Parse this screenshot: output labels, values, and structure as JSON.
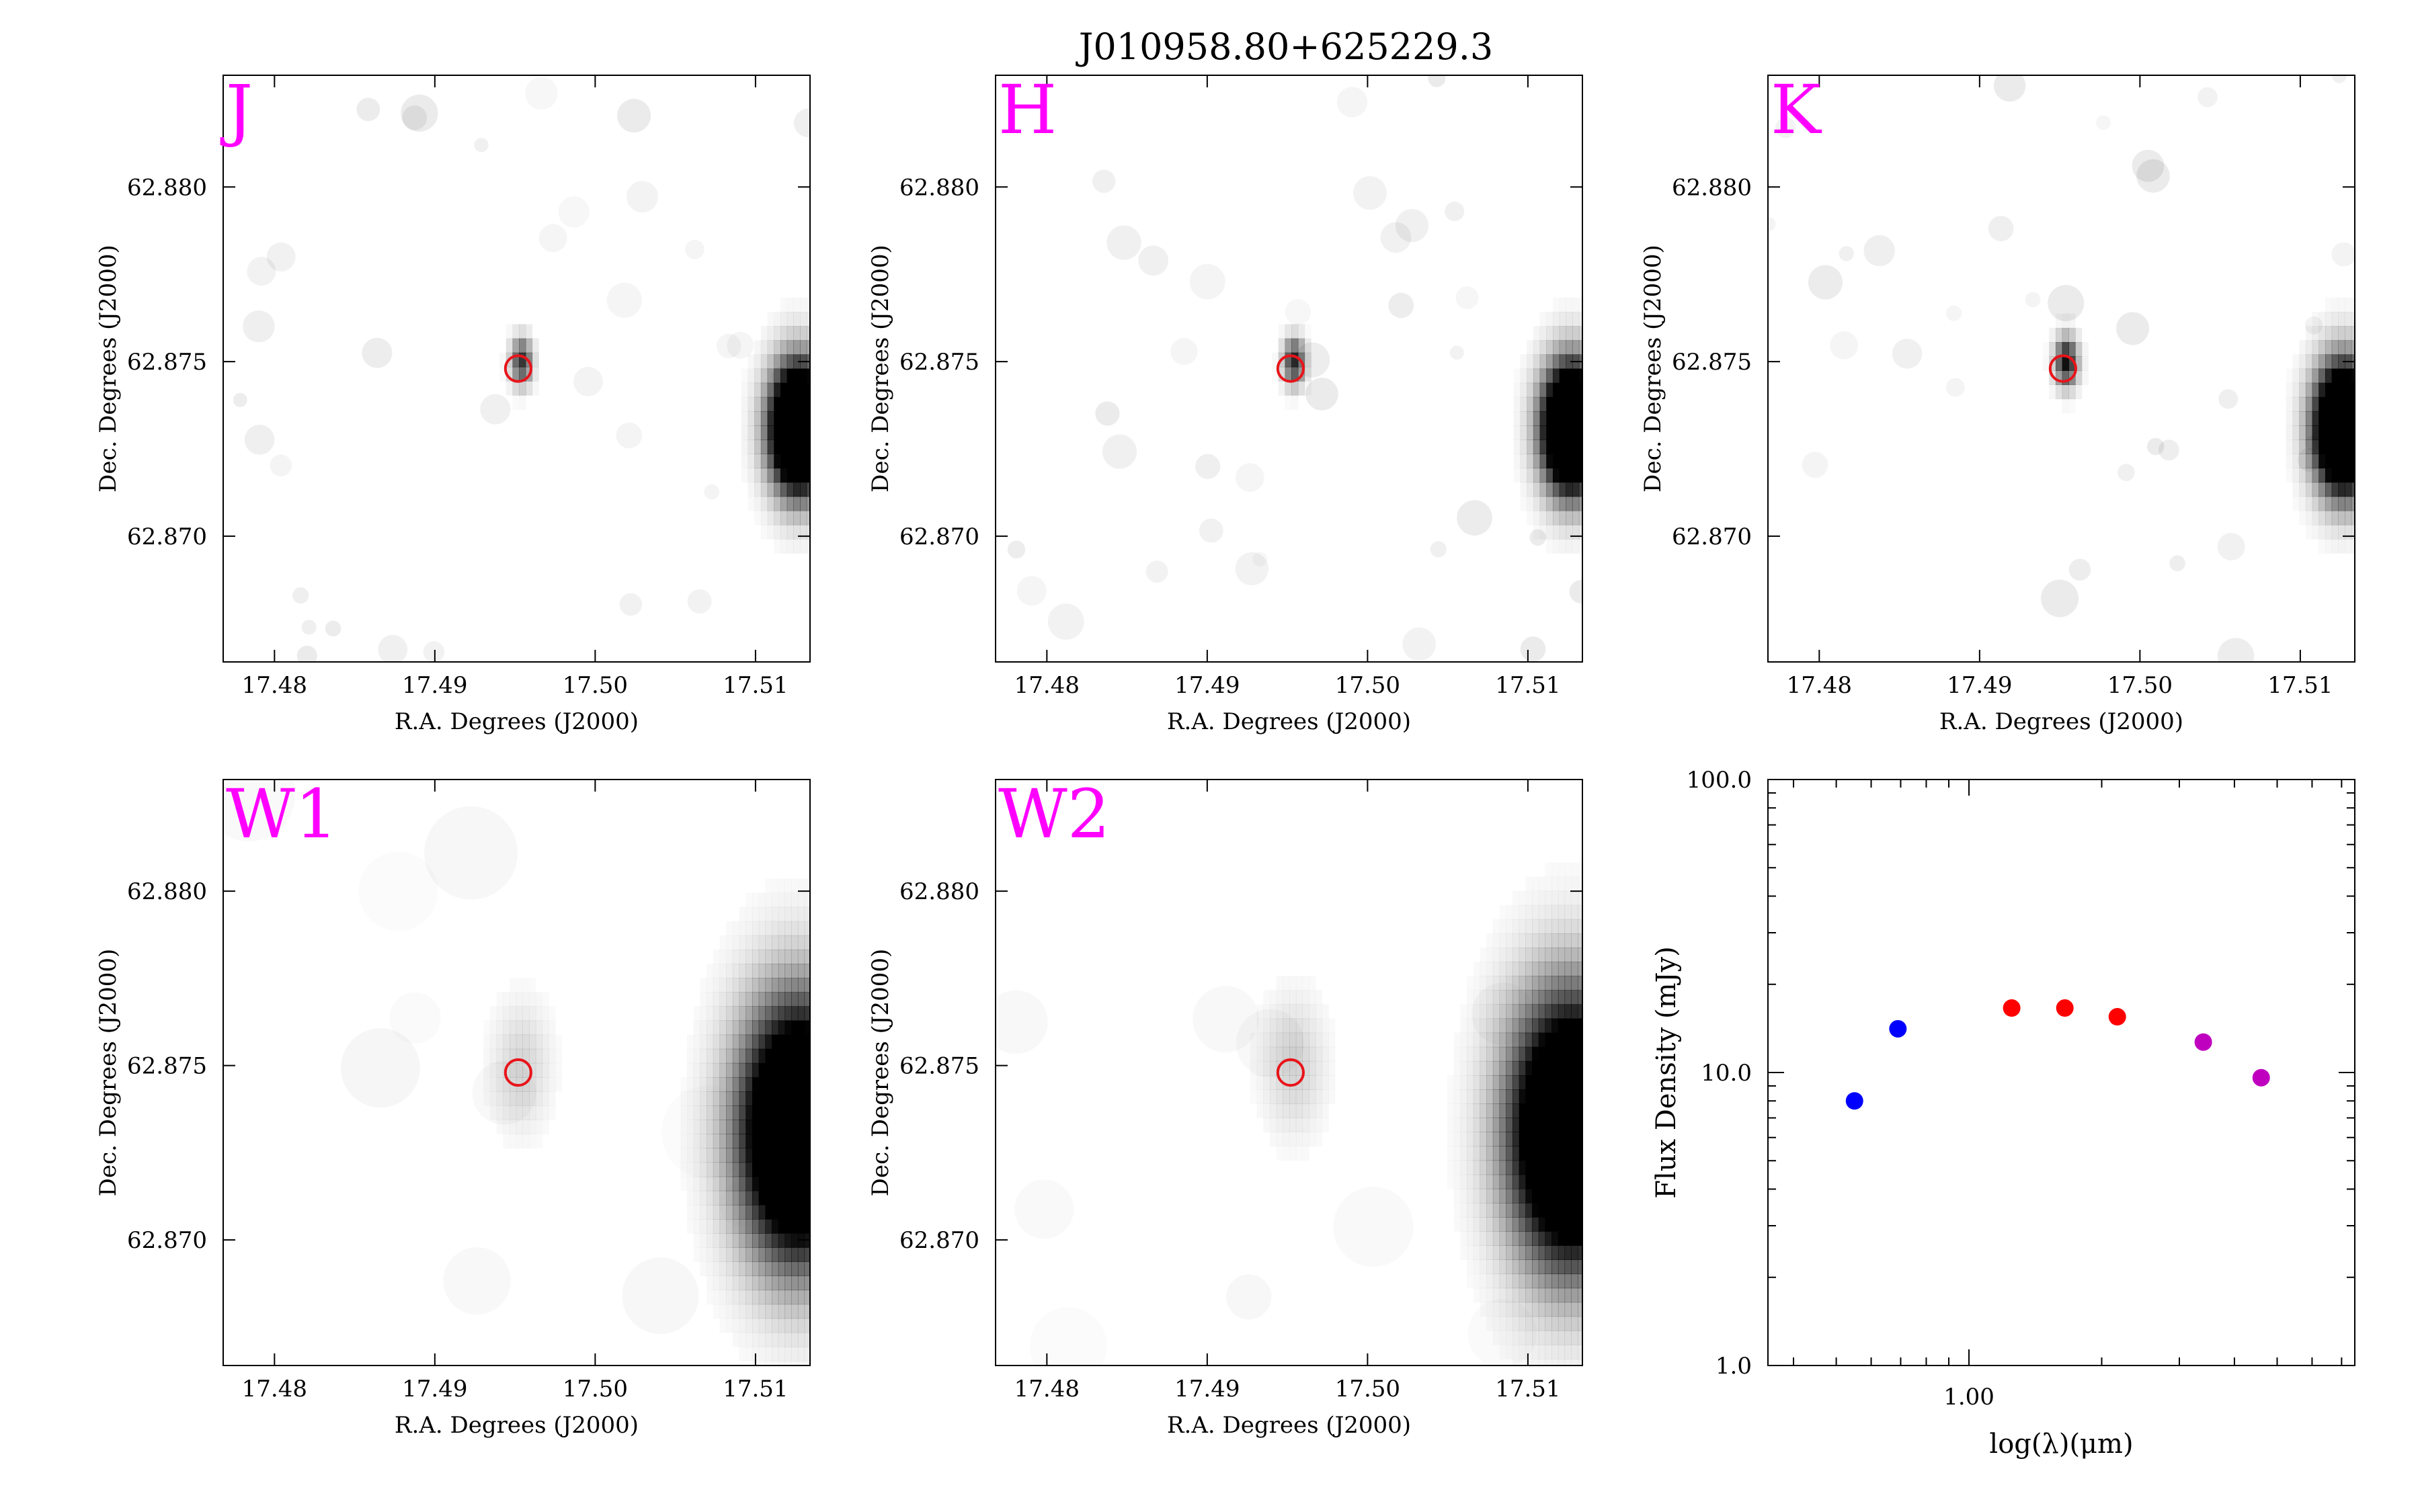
{
  "figure_title": "J010958.80+625229.3",
  "colors": {
    "band_label": "#ff00ff",
    "aperture": "#e8141a",
    "jhk_points": "#ff0000",
    "optical_points": "#0000ff",
    "wise_points": "#bf00bf"
  },
  "chart_data": [
    {
      "type": "heatmap",
      "band": "J",
      "xlabel": "R.A. Degrees (J2000)",
      "ylabel": "Dec. Degrees (J2000)",
      "xlim": [
        17.4768,
        17.5134
      ],
      "ylim": [
        62.8664,
        62.8832
      ],
      "xticks": [
        17.48,
        17.49,
        17.5,
        17.51
      ],
      "xtick_labels": [
        "17.48",
        "17.49",
        "17.50",
        "17.51"
      ],
      "yticks": [
        62.87,
        62.875,
        62.88
      ],
      "ytick_labels": [
        "62.870",
        "62.875",
        "62.880"
      ],
      "aperture": {
        "ra": 17.4952,
        "dec": 62.8748,
        "radius_deg": 0.0008
      },
      "sources": [
        {
          "ra": 17.4952,
          "dec": 62.8748,
          "sigma_deg": 0.00045,
          "amp": 0.8
        },
        {
          "ra": 17.5125,
          "dec": 62.8729,
          "sigma_deg": 0.0012,
          "amp": 2.5
        }
      ]
    },
    {
      "type": "heatmap",
      "band": "H",
      "xlabel": "R.A. Degrees (J2000)",
      "ylabel": "Dec. Degrees (J2000)",
      "xlim": [
        17.4768,
        17.5134
      ],
      "ylim": [
        62.8664,
        62.8832
      ],
      "xticks": [
        17.48,
        17.49,
        17.5,
        17.51
      ],
      "xtick_labels": [
        "17.48",
        "17.49",
        "17.50",
        "17.51"
      ],
      "yticks": [
        62.87,
        62.875,
        62.88
      ],
      "ytick_labels": [
        "62.870",
        "62.875",
        "62.880"
      ],
      "aperture": {
        "ra": 17.4952,
        "dec": 62.8748,
        "radius_deg": 0.0008
      },
      "sources": [
        {
          "ra": 17.4952,
          "dec": 62.8748,
          "sigma_deg": 0.00045,
          "amp": 0.85
        },
        {
          "ra": 17.5125,
          "dec": 62.8729,
          "sigma_deg": 0.0012,
          "amp": 2.5
        }
      ]
    },
    {
      "type": "heatmap",
      "band": "K",
      "xlabel": "R.A. Degrees (J2000)",
      "ylabel": "Dec. Degrees (J2000)",
      "xlim": [
        17.4768,
        17.5134
      ],
      "ylim": [
        62.8664,
        62.8832
      ],
      "xticks": [
        17.48,
        17.49,
        17.5,
        17.51
      ],
      "xtick_labels": [
        "17.48",
        "17.49",
        "17.50",
        "17.51"
      ],
      "yticks": [
        62.87,
        62.875,
        62.88
      ],
      "ytick_labels": [
        "62.870",
        "62.875",
        "62.880"
      ],
      "aperture": {
        "ra": 17.4952,
        "dec": 62.8748,
        "radius_deg": 0.0008
      },
      "sources": [
        {
          "ra": 17.4952,
          "dec": 62.8748,
          "sigma_deg": 0.00048,
          "amp": 0.95
        },
        {
          "ra": 17.5125,
          "dec": 62.8729,
          "sigma_deg": 0.0012,
          "amp": 2.5
        }
      ]
    },
    {
      "type": "heatmap",
      "band": "W1",
      "xlabel": "R.A. Degrees (J2000)",
      "ylabel": "Dec. Degrees (J2000)",
      "xlim": [
        17.4768,
        17.5134
      ],
      "ylim": [
        62.8664,
        62.8832
      ],
      "xticks": [
        17.48,
        17.49,
        17.5,
        17.51
      ],
      "xtick_labels": [
        "17.48",
        "17.49",
        "17.50",
        "17.51"
      ],
      "yticks": [
        62.87,
        62.875,
        62.88
      ],
      "ytick_labels": [
        "62.870",
        "62.875",
        "62.880"
      ],
      "aperture": {
        "ra": 17.4952,
        "dec": 62.8748,
        "radius_deg": 0.0008
      },
      "sources": [
        {
          "ra": 17.4952,
          "dec": 62.8748,
          "sigma_deg": 0.0012,
          "amp": 0.16
        },
        {
          "ra": 17.5125,
          "dec": 62.8729,
          "sigma_deg": 0.0024,
          "amp": 2.2
        }
      ]
    },
    {
      "type": "heatmap",
      "band": "W2",
      "xlabel": "R.A. Degrees (J2000)",
      "ylabel": "Dec. Degrees (J2000)",
      "xlim": [
        17.4768,
        17.5134
      ],
      "ylim": [
        62.8664,
        62.8832
      ],
      "xticks": [
        17.48,
        17.49,
        17.5,
        17.51
      ],
      "xtick_labels": [
        "17.48",
        "17.49",
        "17.50",
        "17.51"
      ],
      "yticks": [
        62.87,
        62.875,
        62.88
      ],
      "ytick_labels": [
        "62.870",
        "62.875",
        "62.880"
      ],
      "aperture": {
        "ra": 17.4952,
        "dec": 62.8748,
        "radius_deg": 0.0008
      },
      "sources": [
        {
          "ra": 17.4952,
          "dec": 62.8748,
          "sigma_deg": 0.0013,
          "amp": 0.17
        },
        {
          "ra": 17.5125,
          "dec": 62.8729,
          "sigma_deg": 0.0025,
          "amp": 2.2
        }
      ]
    },
    {
      "type": "scatter",
      "xlabel": "log(λ)(μm)",
      "ylabel": "Flux Density (mJy)",
      "xscale": "log",
      "yscale": "log",
      "xlim": [
        0.35,
        7.5
      ],
      "ylim": [
        1.0,
        100.0
      ],
      "xticks": [
        1.0
      ],
      "xtick_labels": [
        "1.00"
      ],
      "yticks": [
        1.0,
        10.0,
        100.0
      ],
      "ytick_labels": [
        "1.0",
        "10.0",
        "100.0"
      ],
      "series": [
        {
          "color": "#0000ff",
          "x": [
            0.55,
            0.69
          ],
          "y": [
            8.0,
            14.1
          ]
        },
        {
          "color": "#ff0000",
          "x": [
            1.25,
            1.65,
            2.17
          ],
          "y": [
            16.6,
            16.6,
            15.5
          ]
        },
        {
          "color": "#bf00bf",
          "x": [
            3.4,
            4.6
          ],
          "y": [
            12.7,
            9.6
          ]
        }
      ]
    }
  ]
}
